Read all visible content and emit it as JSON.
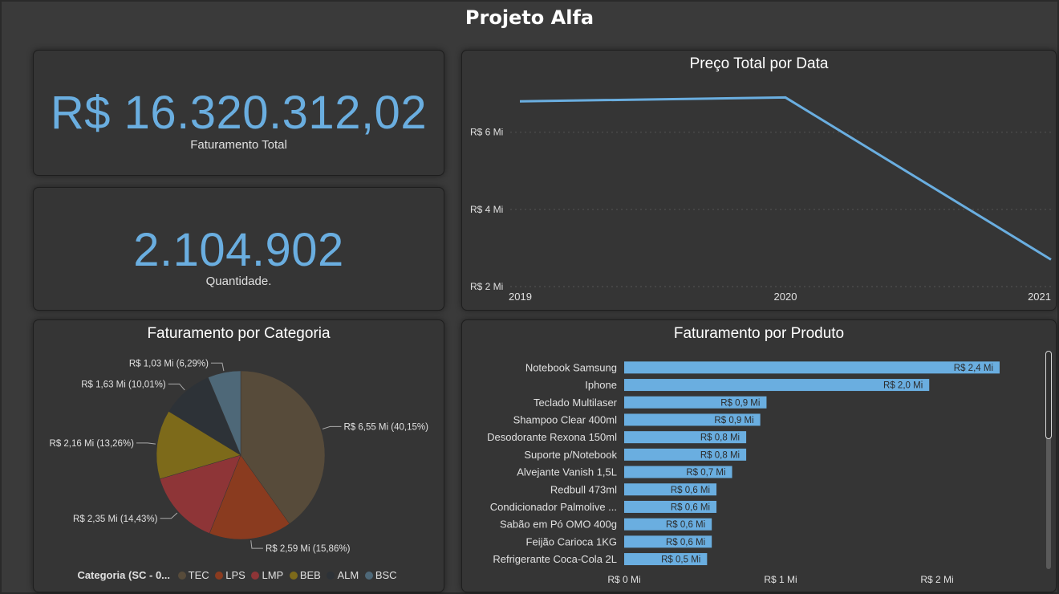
{
  "page": {
    "title": "Projeto Alfa"
  },
  "kpis": {
    "revenue": {
      "value": "R$ 16.320.312,02",
      "label": "Faturamento Total"
    },
    "quantity": {
      "value": "2.104.902",
      "label": "Quantidade."
    }
  },
  "colors": {
    "accent": "#6aaee0",
    "background": "#3a3a3a",
    "card": "#353535",
    "TEC": "#574b3a",
    "LPS": "#8a3b1f",
    "LMP": "#8e3537",
    "BEB": "#7d6a1a",
    "ALM": "#2d3237",
    "BSC": "#4e6878"
  },
  "line_chart": {
    "title": "Preço Total por Data",
    "chart_data": {
      "type": "line",
      "title": "Preço Total por Data",
      "x": [
        "2019",
        "2020",
        "2021"
      ],
      "series": [
        {
          "values": [
            6.8,
            6.9,
            2.7
          ]
        }
      ],
      "ylim": [
        2,
        7.2
      ],
      "y_ticks": [
        {
          "value": 6,
          "label": "R$ 6 Mi"
        },
        {
          "value": 4,
          "label": "R$ 4 Mi"
        },
        {
          "value": 2,
          "label": "R$ 2 Mi"
        }
      ],
      "grid": true
    }
  },
  "pie_chart": {
    "title": "Faturamento por Categoria",
    "legend_title": "Categoria (SC - 0...",
    "chart_data": {
      "type": "pie",
      "title": "Faturamento por Categoria",
      "slices": [
        {
          "category": "TEC",
          "value": 6.55,
          "label": "R$ 6,55 Mi (40,15%)"
        },
        {
          "category": "LPS",
          "value": 2.59,
          "label": "R$ 2,59 Mi (15,86%)"
        },
        {
          "category": "LMP",
          "value": 2.35,
          "label": "R$ 2,35 Mi (14,43%)"
        },
        {
          "category": "BEB",
          "value": 2.16,
          "label": "R$ 2,16 Mi (13,26%)"
        },
        {
          "category": "ALM",
          "value": 1.63,
          "label": "R$ 1,63 Mi (10,01%)"
        },
        {
          "category": "BSC",
          "value": 1.03,
          "label": "R$ 1,03 Mi (6,29%)"
        }
      ],
      "legend_placement": "bottom"
    }
  },
  "bar_chart": {
    "title": "Faturamento por Produto",
    "chart_data": {
      "type": "bar",
      "orientation": "horizontal",
      "title": "Faturamento por Produto",
      "categories": [
        "Notebook Samsung",
        "Iphone",
        "Teclado Multilaser",
        "Shampoo Clear 400ml",
        "Desodorante Rexona 150ml",
        "Suporte p/Notebook",
        "Alvejante Vanish 1,5L",
        "Redbull 473ml",
        "Condicionador Palmolive ...",
        "Sabão em Pó OMO 400g",
        "Feijão Carioca 1KG",
        "Refrigerante Coca-Cola 2L"
      ],
      "values": [
        2.4,
        1.95,
        0.91,
        0.87,
        0.78,
        0.78,
        0.69,
        0.59,
        0.59,
        0.56,
        0.56,
        0.53
      ],
      "value_labels": [
        "R$ 2,4 Mi",
        "R$ 2,0 Mi",
        "R$ 0,9 Mi",
        "R$ 0,9 Mi",
        "R$ 0,8 Mi",
        "R$ 0,8 Mi",
        "R$ 0,7 Mi",
        "R$ 0,6 Mi",
        "R$ 0,6 Mi",
        "R$ 0,6 Mi",
        "R$ 0,6 Mi",
        "R$ 0,5 Mi"
      ],
      "xlim": [
        0,
        2.6
      ],
      "x_ticks": [
        {
          "value": 0,
          "label": "R$ 0 Mi"
        },
        {
          "value": 1,
          "label": "R$ 1 Mi"
        },
        {
          "value": 2,
          "label": "R$ 2 Mi"
        }
      ]
    }
  }
}
